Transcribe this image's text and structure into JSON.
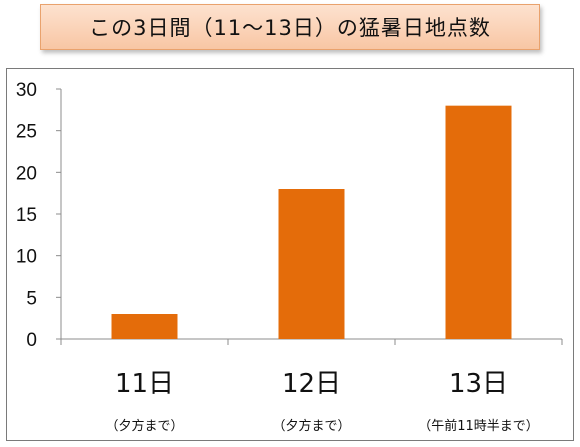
{
  "chart_title": "この3日間（11～13日）の猛暑日地点数",
  "chart_data": {
    "type": "bar",
    "title": "この3日間（11～13日）の猛暑日地点数",
    "categories": [
      "11日",
      "12日",
      "13日"
    ],
    "category_notes": [
      "（夕方まで）",
      "（夕方まで）",
      "（午前11時半まで）"
    ],
    "values": [
      3,
      18,
      28
    ],
    "ylim": [
      0,
      30
    ],
    "yticks": [
      "0",
      "5",
      "10",
      "15",
      "20",
      "25",
      "30"
    ],
    "xlabel": "",
    "ylabel": "",
    "grid": false,
    "legend": "none",
    "bar_color": "#e46c0a"
  }
}
